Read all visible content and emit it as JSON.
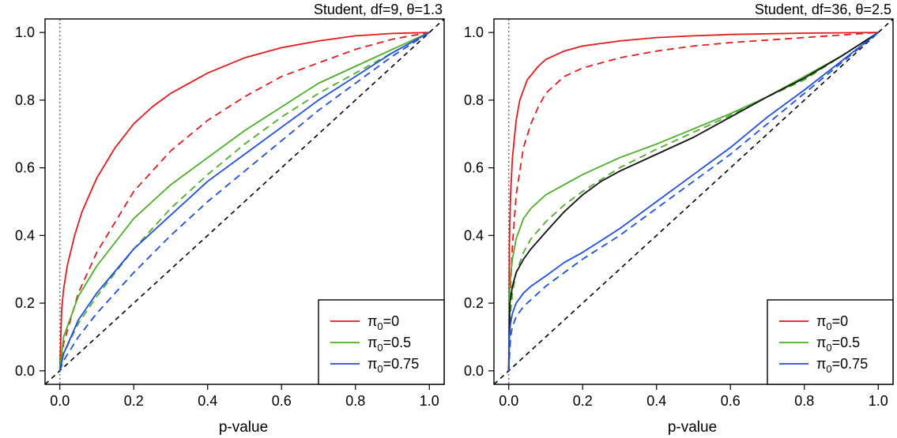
{
  "chart_data": [
    {
      "type": "line",
      "title": "Student, df=9, θ=1.3",
      "xlabel": "p-value",
      "ylabel": "",
      "xlim": [
        -0.04,
        1.04
      ],
      "ylim": [
        -0.04,
        1.04
      ],
      "xticks": [
        "0.0",
        "0.2",
        "0.4",
        "0.6",
        "0.8",
        "1.0"
      ],
      "yticks": [
        "0.0",
        "0.2",
        "0.4",
        "0.6",
        "0.8",
        "1.0"
      ],
      "grid": false,
      "legend_position": "bottom-right",
      "vertical_reference_line": {
        "x": 0,
        "style": "dotted",
        "color": "#777777"
      },
      "reference_line": {
        "style": "dashed",
        "color": "#000000",
        "from": [
          -0.04,
          -0.04
        ],
        "to": [
          1.04,
          1.04
        ]
      },
      "legend": [
        {
          "label": "π0=0",
          "color": "#e41a1c"
        },
        {
          "label": "π0=0.5",
          "color": "#4daf2a"
        },
        {
          "label": "π0=0.75",
          "color": "#1f4ee0"
        }
      ],
      "series": [
        {
          "color": "#e41a1c",
          "style": "solid",
          "x": [
            0,
            0.005,
            0.01,
            0.02,
            0.04,
            0.06,
            0.08,
            0.1,
            0.15,
            0.2,
            0.25,
            0.3,
            0.4,
            0.5,
            0.6,
            0.7,
            0.8,
            0.9,
            1.0
          ],
          "y": [
            0,
            0.18,
            0.24,
            0.31,
            0.4,
            0.47,
            0.52,
            0.57,
            0.66,
            0.73,
            0.78,
            0.82,
            0.88,
            0.925,
            0.955,
            0.975,
            0.99,
            0.997,
            1.0
          ]
        },
        {
          "color": "#e41a1c",
          "style": "dashed",
          "x": [
            0,
            0.01,
            0.05,
            0.1,
            0.2,
            0.3,
            0.4,
            0.5,
            0.6,
            0.7,
            0.8,
            0.9,
            1.0
          ],
          "y": [
            0,
            0.08,
            0.23,
            0.35,
            0.53,
            0.65,
            0.74,
            0.81,
            0.87,
            0.91,
            0.95,
            0.98,
            1.0
          ]
        },
        {
          "color": "#4daf2a",
          "style": "solid",
          "x": [
            0,
            0.01,
            0.05,
            0.1,
            0.2,
            0.3,
            0.4,
            0.5,
            0.6,
            0.7,
            0.8,
            0.9,
            1.0
          ],
          "y": [
            0,
            0.1,
            0.22,
            0.31,
            0.45,
            0.55,
            0.63,
            0.71,
            0.78,
            0.85,
            0.9,
            0.95,
            1.0
          ]
        },
        {
          "color": "#4daf2a",
          "style": "dashed",
          "x": [
            0,
            0.01,
            0.05,
            0.1,
            0.2,
            0.3,
            0.4,
            0.5,
            0.6,
            0.7,
            0.8,
            0.9,
            1.0
          ],
          "y": [
            0,
            0.05,
            0.14,
            0.22,
            0.36,
            0.48,
            0.58,
            0.67,
            0.75,
            0.82,
            0.88,
            0.94,
            1.0
          ]
        },
        {
          "color": "#1f4ee0",
          "style": "solid",
          "x": [
            0,
            0.01,
            0.05,
            0.1,
            0.2,
            0.3,
            0.4,
            0.5,
            0.6,
            0.7,
            0.8,
            0.9,
            1.0
          ],
          "y": [
            0,
            0.05,
            0.15,
            0.23,
            0.36,
            0.46,
            0.56,
            0.64,
            0.72,
            0.8,
            0.87,
            0.94,
            1.0
          ]
        },
        {
          "color": "#1f4ee0",
          "style": "dashed",
          "x": [
            0,
            0.01,
            0.05,
            0.1,
            0.2,
            0.3,
            0.4,
            0.5,
            0.6,
            0.7,
            0.8,
            0.9,
            1.0
          ],
          "y": [
            0,
            0.03,
            0.1,
            0.17,
            0.29,
            0.4,
            0.5,
            0.59,
            0.68,
            0.77,
            0.85,
            0.93,
            1.0
          ]
        }
      ]
    },
    {
      "type": "line",
      "title": "Student, df=36, θ=2.5",
      "xlabel": "p-value",
      "ylabel": "",
      "xlim": [
        -0.04,
        1.04
      ],
      "ylim": [
        -0.04,
        1.04
      ],
      "xticks": [
        "0.0",
        "0.2",
        "0.4",
        "0.6",
        "0.8",
        "1.0"
      ],
      "yticks": [
        "0.0",
        "0.2",
        "0.4",
        "0.6",
        "0.8",
        "1.0"
      ],
      "grid": false,
      "legend_position": "bottom-right",
      "vertical_reference_line": {
        "x": 0,
        "style": "dotted",
        "color": "#777777"
      },
      "reference_line": {
        "style": "dashed",
        "color": "#000000",
        "from": [
          -0.04,
          -0.04
        ],
        "to": [
          1.04,
          1.04
        ]
      },
      "legend": [
        {
          "label": "π0=0",
          "color": "#e41a1c"
        },
        {
          "label": "π0=0.5",
          "color": "#4daf2a"
        },
        {
          "label": "π0=0.75",
          "color": "#1f4ee0"
        }
      ],
      "series": [
        {
          "color": "#e41a1c",
          "style": "solid",
          "x": [
            0,
            0.002,
            0.005,
            0.01,
            0.02,
            0.03,
            0.05,
            0.08,
            0.1,
            0.15,
            0.2,
            0.3,
            0.4,
            0.5,
            0.6,
            0.8,
            1.0
          ],
          "y": [
            0,
            0.38,
            0.52,
            0.63,
            0.74,
            0.8,
            0.86,
            0.9,
            0.92,
            0.945,
            0.96,
            0.975,
            0.985,
            0.99,
            0.994,
            0.998,
            1.0
          ]
        },
        {
          "color": "#e41a1c",
          "style": "dashed",
          "x": [
            0,
            0.005,
            0.01,
            0.02,
            0.04,
            0.06,
            0.08,
            0.1,
            0.15,
            0.2,
            0.3,
            0.4,
            0.5,
            0.6,
            0.8,
            1.0
          ],
          "y": [
            0,
            0.25,
            0.37,
            0.52,
            0.66,
            0.73,
            0.78,
            0.82,
            0.87,
            0.895,
            0.925,
            0.945,
            0.96,
            0.97,
            0.985,
            1.0
          ]
        },
        {
          "color": "#4daf2a",
          "style": "solid",
          "x": [
            0,
            0.002,
            0.005,
            0.01,
            0.02,
            0.04,
            0.06,
            0.1,
            0.15,
            0.2,
            0.3,
            0.4,
            0.5,
            0.6,
            0.7,
            0.8,
            0.9,
            1.0
          ],
          "y": [
            0,
            0.22,
            0.28,
            0.33,
            0.39,
            0.45,
            0.48,
            0.52,
            0.55,
            0.58,
            0.63,
            0.67,
            0.715,
            0.76,
            0.81,
            0.87,
            0.93,
            1.0
          ]
        },
        {
          "color": "#4daf2a",
          "style": "dashed",
          "x": [
            0,
            0.005,
            0.01,
            0.02,
            0.04,
            0.06,
            0.1,
            0.15,
            0.2,
            0.3,
            0.4,
            0.5,
            0.6,
            0.7,
            0.8,
            0.9,
            1.0
          ],
          "y": [
            0,
            0.17,
            0.23,
            0.29,
            0.35,
            0.39,
            0.44,
            0.49,
            0.53,
            0.6,
            0.655,
            0.705,
            0.755,
            0.81,
            0.86,
            0.93,
            1.0
          ]
        },
        {
          "color": "#111111",
          "style": "solid",
          "x": [
            0,
            0.003,
            0.006,
            0.01,
            0.02,
            0.04,
            0.06,
            0.1,
            0.15,
            0.2,
            0.25,
            0.3,
            0.4,
            0.5,
            0.6,
            0.7,
            0.8,
            0.9,
            1.0
          ],
          "y": [
            0,
            0.2,
            0.22,
            0.25,
            0.29,
            0.33,
            0.36,
            0.41,
            0.47,
            0.52,
            0.56,
            0.59,
            0.64,
            0.69,
            0.75,
            0.81,
            0.865,
            0.93,
            1.0
          ]
        },
        {
          "color": "#1f4ee0",
          "style": "solid",
          "x": [
            0,
            0.002,
            0.005,
            0.01,
            0.02,
            0.04,
            0.06,
            0.1,
            0.15,
            0.2,
            0.3,
            0.4,
            0.5,
            0.6,
            0.7,
            0.8,
            0.9,
            1.0
          ],
          "y": [
            0,
            0.1,
            0.14,
            0.17,
            0.2,
            0.23,
            0.25,
            0.28,
            0.32,
            0.35,
            0.42,
            0.5,
            0.58,
            0.66,
            0.75,
            0.83,
            0.915,
            1.0
          ]
        },
        {
          "color": "#1f4ee0",
          "style": "dashed",
          "x": [
            0,
            0.005,
            0.01,
            0.02,
            0.04,
            0.06,
            0.1,
            0.15,
            0.2,
            0.3,
            0.4,
            0.5,
            0.6,
            0.7,
            0.8,
            0.9,
            1.0
          ],
          "y": [
            0,
            0.1,
            0.13,
            0.16,
            0.19,
            0.21,
            0.25,
            0.29,
            0.33,
            0.4,
            0.48,
            0.56,
            0.64,
            0.73,
            0.82,
            0.91,
            1.0
          ]
        }
      ]
    }
  ]
}
